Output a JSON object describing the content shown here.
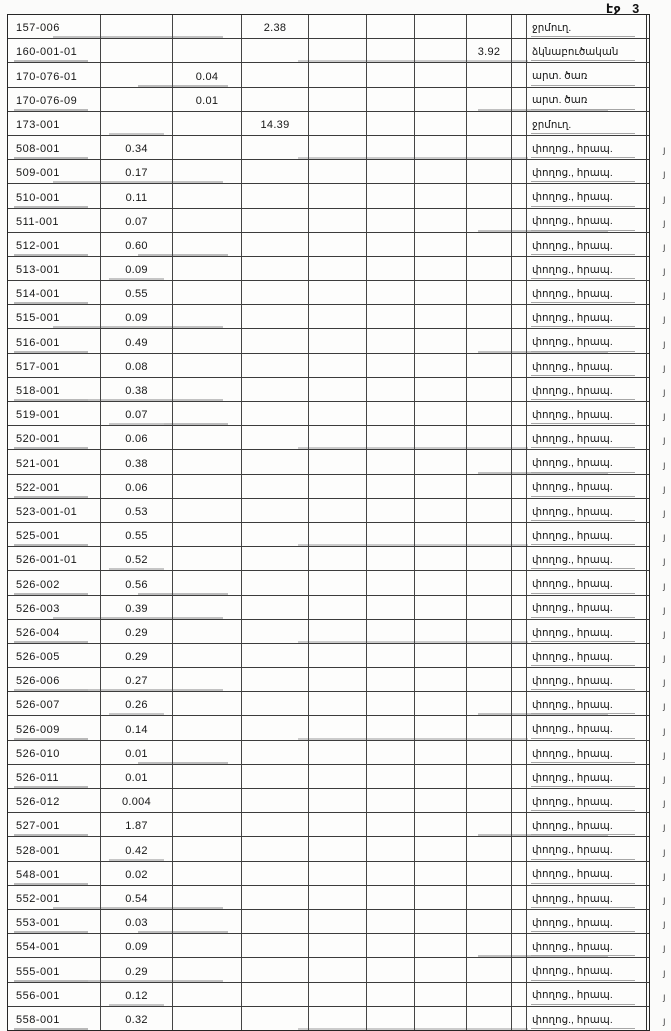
{
  "page": {
    "label": "էջ 3"
  },
  "table": {
    "col_keys": [
      "code",
      "c1",
      "c2",
      "c3",
      "c4",
      "c5",
      "c6",
      "c7",
      "c8",
      "label"
    ],
    "edge_mark_char": "յ",
    "rows": [
      {
        "code": "157-006",
        "c3": "2.38",
        "label": "ջրմուղ.",
        "edge": ""
      },
      {
        "code": "160-001-01",
        "c7": "3.92",
        "label": "ձկնաբուծական",
        "edge": ""
      },
      {
        "code": "170-076-01",
        "c2": "0.04",
        "label": "արտ. ծառ",
        "edge": ""
      },
      {
        "code": "170-076-09",
        "c2": "0.01",
        "label": "արտ. ծառ",
        "edge": ""
      },
      {
        "code": "173-001",
        "c3": "14.39",
        "label": "ջրմուղ.",
        "edge": ""
      },
      {
        "code": "508-001",
        "c1": "0.34",
        "label": "փողոց., հրապ.",
        "edge": "յ"
      },
      {
        "code": "509-001",
        "c1": "0.17",
        "label": "փողոց., հրապ.",
        "edge": "յ"
      },
      {
        "code": "510-001",
        "c1": "0.11",
        "label": "փողոց., հրապ.",
        "edge": "յ"
      },
      {
        "code": "511-001",
        "c1": "0.07",
        "label": "փողոց., հրապ.",
        "edge": "յ"
      },
      {
        "code": "512-001",
        "c1": "0.60",
        "label": "փողոց., հրապ.",
        "edge": "յ"
      },
      {
        "code": "513-001",
        "c1": "0.09",
        "label": "փողոց., հրապ.",
        "edge": "յ"
      },
      {
        "code": "514-001",
        "c1": "0.55",
        "label": "փողոց., հրապ.",
        "edge": "յ"
      },
      {
        "code": "515-001",
        "c1": "0.09",
        "label": "փողոց., հրապ.",
        "edge": "յ"
      },
      {
        "code": "516-001",
        "c1": "0.49",
        "label": "փողոց., հրապ.",
        "edge": "յ"
      },
      {
        "code": "517-001",
        "c1": "0.08",
        "label": "փողոց., հրապ.",
        "edge": "յ"
      },
      {
        "code": "518-001",
        "c1": "0.38",
        "label": "փողոց., հրապ.",
        "edge": "յ"
      },
      {
        "code": "519-001",
        "c1": "0.07",
        "label": "փողոց., հրապ.",
        "edge": "յ"
      },
      {
        "code": "520-001",
        "c1": "0.06",
        "label": "փողոց., հրապ.",
        "edge": "յ"
      },
      {
        "code": "521-001",
        "c1": "0.38",
        "label": "փողոց., հրապ.",
        "edge": "յ"
      },
      {
        "code": "522-001",
        "c1": "0.06",
        "label": "փողոց., հրապ.",
        "edge": "յ"
      },
      {
        "code": "523-001-01",
        "c1": "0.53",
        "label": "փողոց., հրապ.",
        "edge": "յ"
      },
      {
        "code": "525-001",
        "c1": "0.55",
        "label": "փողոց., հրապ.",
        "edge": "յ"
      },
      {
        "code": "526-001-01",
        "c1": "0.52",
        "label": "փողոց., հրապ.",
        "edge": "յ"
      },
      {
        "code": "526-002",
        "c1": "0.56",
        "label": "փողոց., հրապ.",
        "edge": "յ"
      },
      {
        "code": "526-003",
        "c1": "0.39",
        "label": "փողոց., հրապ.",
        "edge": "յ"
      },
      {
        "code": "526-004",
        "c1": "0.29",
        "label": "փողոց., հրապ.",
        "edge": "յ"
      },
      {
        "code": "526-005",
        "c1": "0.29",
        "label": "փողոց., հրապ.",
        "edge": "յ"
      },
      {
        "code": "526-006",
        "c1": "0.27",
        "label": "փողոց., հրապ.",
        "edge": "յ"
      },
      {
        "code": "526-007",
        "c1": "0.26",
        "label": "փողոց., հրապ.",
        "edge": "յ"
      },
      {
        "code": "526-009",
        "c1": "0.14",
        "label": "փողոց., հրապ.",
        "edge": "յ"
      },
      {
        "code": "526-010",
        "c1": "0.01",
        "label": "փողոց., հրապ.",
        "edge": "յ"
      },
      {
        "code": "526-011",
        "c1": "0.01",
        "label": "փողոց., հրապ.",
        "edge": "յ"
      },
      {
        "code": "526-012",
        "c1": "0.004",
        "label": "փողոց., հրապ.",
        "edge": "յ"
      },
      {
        "code": "527-001",
        "c1": "1.87",
        "label": "փողոց., հրապ.",
        "edge": "յ"
      },
      {
        "code": "528-001",
        "c1": "0.42",
        "label": "փողոց., հրապ.",
        "edge": "յ"
      },
      {
        "code": "548-001",
        "c1": "0.02",
        "label": "փողոց., հրապ.",
        "edge": "յ"
      },
      {
        "code": "552-001",
        "c1": "0.54",
        "label": "փողոց., հրապ.",
        "edge": "յ"
      },
      {
        "code": "553-001",
        "c1": "0.03",
        "label": "փողոց., հրապ.",
        "edge": "յ"
      },
      {
        "code": "554-001",
        "c1": "0.09",
        "label": "փողոց., հրապ.",
        "edge": "յ"
      },
      {
        "code": "555-001",
        "c1": "0.29",
        "label": "փողոց., հրապ.",
        "edge": "յ"
      },
      {
        "code": "556-001",
        "c1": "0.12",
        "label": "փողոց., հրապ.",
        "edge": "յ"
      },
      {
        "code": "558-001",
        "c1": "0.32",
        "label": "փողոց., հրապ.",
        "edge": "յ"
      }
    ]
  }
}
